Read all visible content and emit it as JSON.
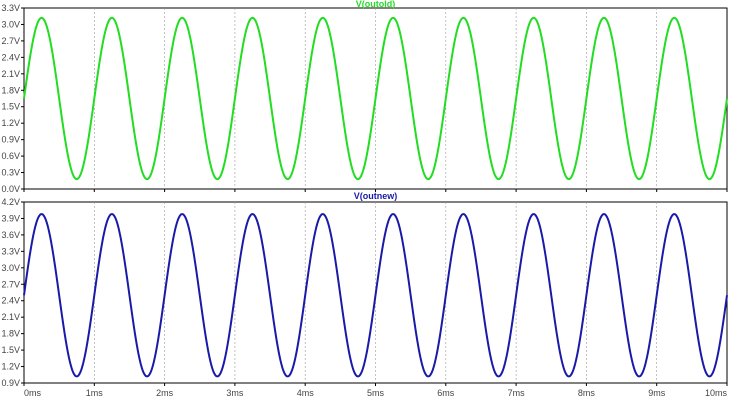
{
  "chart_data": [
    {
      "type": "line",
      "title": "V(outold)",
      "ylim": [
        0,
        3.3
      ],
      "yticks": [
        "0.0V",
        "0.3V",
        "0.6V",
        "0.9V",
        "1.2V",
        "1.5V",
        "1.8V",
        "2.1V",
        "2.4V",
        "2.7V",
        "3.0V",
        "3.3V"
      ],
      "ytick_values": [
        0,
        0.3,
        0.6,
        0.9,
        1.2,
        1.5,
        1.8,
        2.1,
        2.4,
        2.7,
        3.0,
        3.3
      ],
      "xlim": [
        0,
        10
      ],
      "grid": true,
      "series": [
        {
          "name": "V(outold)",
          "color": "#22dd22",
          "offset": 1.65,
          "amplitude": 1.47,
          "frequency_khz": 1,
          "phase": 0
        }
      ],
      "greyed_ticks": true
    },
    {
      "type": "line",
      "title": "V(outnew)",
      "ylim": [
        0.9,
        4.2
      ],
      "yticks": [
        "0.9V",
        "1.2V",
        "1.5V",
        "1.8V",
        "2.1V",
        "2.4V",
        "2.7V",
        "3.0V",
        "3.3V",
        "3.6V",
        "3.9V",
        "4.2V"
      ],
      "ytick_values": [
        0.9,
        1.2,
        1.5,
        1.8,
        2.1,
        2.4,
        2.7,
        3.0,
        3.3,
        3.6,
        3.9,
        4.2
      ],
      "xlim": [
        0,
        10
      ],
      "xticks": [
        "0ms",
        "1ms",
        "2ms",
        "3ms",
        "4ms",
        "5ms",
        "6ms",
        "7ms",
        "8ms",
        "9ms",
        "10ms"
      ],
      "xtick_values": [
        0,
        1,
        2,
        3,
        4,
        5,
        6,
        7,
        8,
        9,
        10
      ],
      "grid": true,
      "series": [
        {
          "name": "V(outnew)",
          "color": "#1a1aa8",
          "offset": 2.5,
          "amplitude": 1.48,
          "frequency_khz": 1,
          "phase": 0
        }
      ],
      "greyed_ticks": false
    }
  ]
}
